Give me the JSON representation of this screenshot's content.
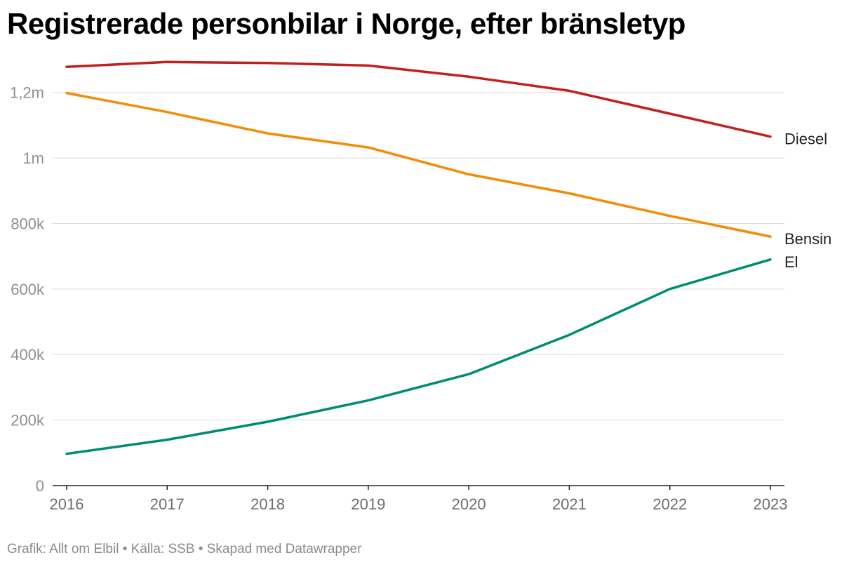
{
  "title": "Registrerade personbilar i Norge, efter bränsletyp",
  "footer": {
    "credit": "Grafik: Allt om Elbil",
    "sep1": " • ",
    "source": "Källa: SSB",
    "sep2": " • ",
    "tool": "Skapad med Datawrapper"
  },
  "chart_data": {
    "type": "line",
    "title": "Registrerade personbilar i Norge, efter bränsletyp",
    "x": [
      2016,
      2017,
      2018,
      2019,
      2020,
      2021,
      2022,
      2023
    ],
    "x_tick_labels": [
      "2016",
      "2017",
      "2018",
      "2019",
      "2020",
      "2021",
      "2022",
      "2023"
    ],
    "ylim": [
      0,
      1300000
    ],
    "y_ticks": [
      0,
      200000,
      400000,
      600000,
      800000,
      1000000,
      1200000
    ],
    "y_tick_labels": [
      "0",
      "200k",
      "400k",
      "600k",
      "800k",
      "1m",
      "1,2m"
    ],
    "grid": true,
    "series": [
      {
        "name": "Diesel",
        "color": "#c0201f",
        "values": [
          1278000,
          1293000,
          1290000,
          1282000,
          1248000,
          1205000,
          1135000,
          1065000
        ]
      },
      {
        "name": "Bensin",
        "color": "#f28c07",
        "values": [
          1198000,
          1140000,
          1075000,
          1032000,
          950000,
          892000,
          823000,
          760000
        ]
      },
      {
        "name": "El",
        "color": "#008c72",
        "values": [
          97000,
          140000,
          195000,
          260000,
          340000,
          460000,
          600000,
          690000
        ]
      }
    ]
  }
}
